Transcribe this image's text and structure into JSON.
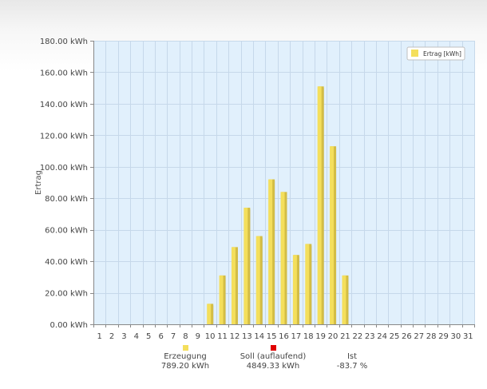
{
  "colors": {
    "plot_bg": "#e1f0fc",
    "grid": "#c6d8ea",
    "bar_face": "#f4df5c",
    "bar_side": "#d3bd45",
    "bar_shadow": "#999999",
    "axis": "#888888",
    "legend_swatch": "#f4df5c",
    "soll_swatch": "#e00000"
  },
  "chart_data": {
    "type": "bar",
    "title": "",
    "ylabel": "Ertrag",
    "xlabel": "",
    "ylim": [
      0,
      180
    ],
    "yticks": [
      "0.00 kWh",
      "20.00 kWh",
      "40.00 kWh",
      "60.00 kWh",
      "80.00 kWh",
      "100.00 kWh",
      "120.00 kWh",
      "140.00 kWh",
      "160.00 kWh",
      "180.00 kWh"
    ],
    "categories": [
      "1",
      "2",
      "3",
      "4",
      "5",
      "6",
      "7",
      "8",
      "9",
      "10",
      "11",
      "12",
      "13",
      "14",
      "15",
      "16",
      "17",
      "18",
      "19",
      "20",
      "21",
      "22",
      "23",
      "24",
      "25",
      "26",
      "27",
      "28",
      "29",
      "30",
      "31"
    ],
    "series": [
      {
        "name": "Ertrag [kWh]",
        "values": [
          0,
          0,
          0,
          0,
          0,
          0,
          0,
          0,
          0,
          13,
          31,
          49,
          74,
          56,
          92,
          84,
          44,
          51,
          151,
          113,
          31,
          0,
          0,
          0,
          0,
          0,
          0,
          0,
          0,
          0,
          0
        ]
      }
    ],
    "grid": true,
    "legend": "top-right"
  },
  "summary": {
    "erzeugung": {
      "label": "Erzeugung",
      "value": "789.20 kWh"
    },
    "soll": {
      "label": "Soll (auflaufend)",
      "value": "4849.33 kWh"
    },
    "ist": {
      "label": "Ist",
      "value": "-83.7 %"
    }
  }
}
